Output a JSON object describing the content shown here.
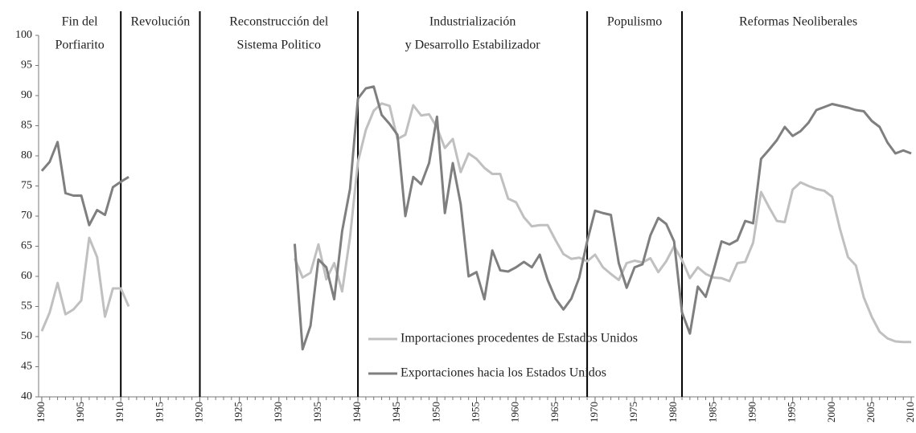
{
  "chart_data": {
    "type": "line",
    "x": [
      1900,
      1901,
      1902,
      1903,
      1904,
      1905,
      1906,
      1907,
      1908,
      1909,
      1910,
      1911,
      1912,
      1913,
      1914,
      1915,
      1916,
      1917,
      1918,
      1919,
      1920,
      1921,
      1922,
      1923,
      1924,
      1925,
      1926,
      1927,
      1928,
      1929,
      1930,
      1931,
      1932,
      1933,
      1934,
      1935,
      1936,
      1937,
      1938,
      1939,
      1940,
      1941,
      1942,
      1943,
      1944,
      1945,
      1946,
      1947,
      1948,
      1949,
      1950,
      1951,
      1952,
      1953,
      1954,
      1955,
      1956,
      1957,
      1958,
      1959,
      1960,
      1961,
      1962,
      1963,
      1964,
      1965,
      1966,
      1967,
      1968,
      1969,
      1970,
      1971,
      1972,
      1973,
      1974,
      1975,
      1976,
      1977,
      1978,
      1979,
      1980,
      1981,
      1982,
      1983,
      1984,
      1985,
      1986,
      1987,
      1988,
      1989,
      1990,
      1991,
      1992,
      1993,
      1994,
      1995,
      1996,
      1997,
      1998,
      1999,
      2000,
      2001,
      2002,
      2003,
      2004,
      2005,
      2006,
      2007,
      2008,
      2009,
      2010
    ],
    "series": [
      {
        "name": "Importaciones procedentes de Estados Unidos",
        "color": "#c0c0c0",
        "values": [
          50.9,
          54,
          58.9,
          53.7,
          54.5,
          56,
          66.4,
          63.2,
          53.3,
          58,
          58,
          55,
          null,
          null,
          null,
          null,
          null,
          null,
          null,
          null,
          null,
          null,
          null,
          null,
          null,
          null,
          null,
          null,
          null,
          null,
          null,
          null,
          63,
          59.8,
          60.6,
          65.3,
          59.5,
          62.2,
          57.5,
          66.5,
          79,
          84.3,
          87.5,
          88.7,
          88.3,
          82.8,
          83.5,
          88.4,
          86.7,
          86.9,
          84.7,
          81.3,
          82.8,
          77.3,
          80.4,
          79.5,
          78,
          77,
          77,
          72.9,
          72.3,
          69.8,
          68.3,
          68.5,
          68.5,
          66,
          63.7,
          62.9,
          63.1,
          62.5,
          63.6,
          61.5,
          60.4,
          59.4,
          62.2,
          62.6,
          62.3,
          63,
          60.7,
          62.5,
          65,
          62.7,
          59.7,
          61.5,
          60.4,
          59.8,
          59.7,
          59.2,
          62.2,
          62.4,
          65.6,
          74,
          71.5,
          69.2,
          69,
          74.4,
          75.6,
          75,
          74.5,
          74.2,
          73.2,
          67.8,
          63.2,
          61.8,
          56.5,
          53.3,
          50.8,
          49.7,
          49.2,
          49.1,
          49.1
        ]
      },
      {
        "name": "Exportaciones hacia los Estados Unidos",
        "color": "#7f7f7f",
        "values": [
          77.5,
          79,
          82.3,
          73.8,
          73.4,
          73.4,
          68.5,
          71,
          70.2,
          74.8,
          75.7,
          76.5,
          null,
          null,
          null,
          null,
          null,
          null,
          null,
          null,
          null,
          null,
          null,
          null,
          null,
          null,
          null,
          null,
          null,
          null,
          null,
          null,
          65.4,
          47.9,
          51.8,
          62.8,
          61.5,
          56.2,
          67.5,
          74.5,
          89.5,
          91.2,
          91.5,
          86.8,
          85.3,
          83.5,
          70,
          76.5,
          75.3,
          78.8,
          86.5,
          70.5,
          78.8,
          72,
          60,
          60.7,
          56.2,
          64.3,
          61,
          60.8,
          61.5,
          62.4,
          61.5,
          63.6,
          59.4,
          56.3,
          54.5,
          56.3,
          59.8,
          65.8,
          70.9,
          70.5,
          70.2,
          62.2,
          58.1,
          61.5,
          62,
          66.8,
          69.7,
          68.7,
          65.8,
          54,
          50.5,
          58.3,
          56.6,
          61,
          65.8,
          65.3,
          66,
          69.2,
          68.8,
          79.5,
          81,
          82.6,
          84.8,
          83.3,
          84.1,
          85.5,
          87.6,
          88.1,
          88.6,
          88.3,
          88,
          87.6,
          87.4,
          85.8,
          84.8,
          82.2,
          80.4,
          80.9,
          80.4
        ]
      }
    ],
    "xlim": [
      1899.6,
      2010.4
    ],
    "xticks": [
      1900,
      1905,
      1910,
      1915,
      1920,
      1925,
      1930,
      1935,
      1940,
      1945,
      1950,
      1955,
      1960,
      1965,
      1970,
      1975,
      1980,
      1985,
      1990,
      1995,
      2000,
      2005,
      2010
    ],
    "ylim": [
      40,
      100
    ],
    "yticks": [
      40,
      45,
      50,
      55,
      60,
      65,
      70,
      75,
      80,
      85,
      90,
      95,
      100
    ],
    "period_lines": [
      1910,
      1920,
      1940,
      1969,
      1981
    ],
    "periods": [
      [
        "Fin del",
        "Porfiarito"
      ],
      [
        "Revolución"
      ],
      [
        "Reconstrucción del",
        "Sistema Politico"
      ],
      [
        "Industrialización",
        "y Desarrollo Estabilizador"
      ],
      [
        "Populismo"
      ],
      [
        "Reformas Neoliberales"
      ]
    ],
    "legend": "bottom-center",
    "grid": false
  }
}
